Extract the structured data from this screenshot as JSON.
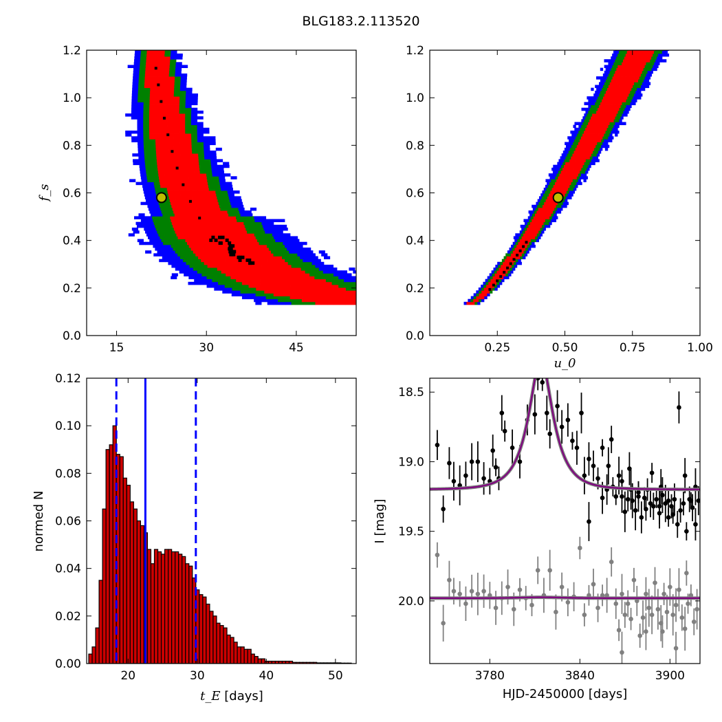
{
  "figure_title": "BLG183.2.113520",
  "chart_data": [
    {
      "id": "fs_vs_tE",
      "type": "heatmap",
      "xlabel": "",
      "ylabel": "f_s",
      "xlim": [
        10,
        55
      ],
      "ylim": [
        0.0,
        1.2
      ],
      "xticks": [
        "15",
        "30",
        "45"
      ],
      "xtick_values": [
        15,
        30,
        45
      ],
      "yticks": [
        "0.0",
        "0.2",
        "0.4",
        "0.6",
        "0.8",
        "1.0",
        "1.2"
      ],
      "ytick_values": [
        0.0,
        0.2,
        0.4,
        0.6,
        0.8,
        1.0,
        1.2
      ],
      "band": {
        "a": 0.0,
        "b": 3.9,
        "c": 1.94,
        "power": 1.9,
        "x_at_top": 17.5,
        "y_min": 0.13
      },
      "best_fit": {
        "x": 22.5,
        "y": 0.58
      },
      "colors": {
        "outer": "#0000ff",
        "middle": "#008000",
        "inner": "#ff0000",
        "peak": "#000000",
        "marker": "#bfbf00"
      }
    },
    {
      "id": "fs_vs_u0",
      "type": "heatmap",
      "xlabel": "u_0",
      "ylabel": "",
      "xlim": [
        0.0,
        1.0
      ],
      "ylim": [
        0.0,
        1.2
      ],
      "xticks": [
        "0.25",
        "0.50",
        "0.75",
        "1.00"
      ],
      "xtick_values": [
        0.25,
        0.5,
        0.75,
        1.0
      ],
      "yticks": [
        "0.0",
        "0.2",
        "0.4",
        "0.6",
        "0.8",
        "1.0",
        "1.2"
      ],
      "ytick_values": [
        0.0,
        0.2,
        0.4,
        0.6,
        0.8,
        1.0,
        1.2
      ],
      "band": {
        "x_low": 0.15,
        "x_high": 0.8,
        "y_low": 0.13,
        "y_high": 1.2
      },
      "best_fit": {
        "x": 0.475,
        "y": 0.58
      },
      "colors": {
        "outer": "#0000ff",
        "middle": "#008000",
        "inner": "#ff0000",
        "peak": "#000000",
        "marker": "#bfbf00"
      }
    },
    {
      "id": "tE_histogram",
      "type": "bar",
      "xlabel": "[days]",
      "xlabel_symbol": "t_E",
      "ylabel": "normed N",
      "xlim": [
        14,
        53
      ],
      "ylim": [
        0.0,
        0.12
      ],
      "xticks": [
        "20",
        "30",
        "40",
        "50"
      ],
      "xtick_values": [
        20,
        30,
        40,
        50
      ],
      "yticks": [
        "0.00",
        "0.02",
        "0.04",
        "0.06",
        "0.08",
        "0.10",
        "0.12"
      ],
      "ytick_values": [
        0.0,
        0.02,
        0.04,
        0.06,
        0.08,
        0.1,
        0.12
      ],
      "bin_start": 14.3,
      "bin_width": 0.5,
      "values": [
        0.004,
        0.007,
        0.015,
        0.035,
        0.065,
        0.09,
        0.092,
        0.1,
        0.088,
        0.087,
        0.078,
        0.075,
        0.068,
        0.065,
        0.06,
        0.058,
        0.055,
        0.048,
        0.042,
        0.048,
        0.047,
        0.046,
        0.048,
        0.048,
        0.047,
        0.047,
        0.046,
        0.045,
        0.042,
        0.041,
        0.036,
        0.031,
        0.029,
        0.028,
        0.025,
        0.022,
        0.02,
        0.017,
        0.016,
        0.015,
        0.012,
        0.011,
        0.009,
        0.007,
        0.007,
        0.006,
        0.006,
        0.004,
        0.003,
        0.002,
        0.002,
        0.001,
        0.001,
        0.001,
        0.001,
        0.001,
        0.001,
        0.001,
        0.001,
        0.0005,
        0.0005,
        0.0005,
        0.0005,
        0.0005,
        0.0005,
        0.0005,
        0.0003,
        0.0003,
        0.0003,
        0.0003,
        0.0003,
        0.0003,
        0.0003,
        0.0002,
        0.0002,
        0.0002
      ],
      "median": 22.5,
      "lower": 18.3,
      "upper": 29.8,
      "colors": {
        "bar": "#cc0000",
        "edge": "#000000",
        "line": "#0000ff"
      }
    },
    {
      "id": "light_curve",
      "type": "scatter",
      "xlabel": "HJD-2450000 [days]",
      "ylabel": "I [mag]",
      "xlim": [
        3740,
        3920
      ],
      "ylim": [
        20.45,
        18.4
      ],
      "xticks": [
        "3780",
        "3840",
        "3900"
      ],
      "xtick_values": [
        3780,
        3840,
        3900
      ],
      "yticks": [
        "18.5",
        "19.0",
        "19.5",
        "20.0"
      ],
      "ytick_values": [
        18.5,
        19.0,
        19.5,
        20.0
      ],
      "model": {
        "t0": 3814,
        "tE": 22.5,
        "u0": 0.475,
        "fs": 0.58,
        "base_mag": 19.2,
        "resid_level": 19.98
      },
      "points": [
        [
          3788,
          18.65
        ],
        [
          3790,
          18.78
        ],
        [
          3795,
          18.9
        ],
        [
          3800,
          19.0
        ],
        [
          3805,
          18.7
        ],
        [
          3810,
          18.66
        ],
        [
          3812,
          18.4
        ],
        [
          3815,
          18.43
        ],
        [
          3818,
          18.65
        ],
        [
          3820,
          18.8
        ],
        [
          3825,
          18.6
        ],
        [
          3828,
          18.75
        ],
        [
          3832,
          18.7
        ],
        [
          3835,
          18.85
        ],
        [
          3838,
          18.9
        ],
        [
          3841,
          18.65
        ],
        [
          3843,
          19.1
        ],
        [
          3846,
          18.98
        ],
        [
          3849,
          19.03
        ],
        [
          3852,
          19.12
        ],
        [
          3855,
          19.26
        ],
        [
          3858,
          19.2
        ],
        [
          3861,
          18.84
        ],
        [
          3864,
          19.25
        ],
        [
          3866,
          19.1
        ],
        [
          3868,
          19.25
        ],
        [
          3870,
          19.36
        ],
        [
          3872,
          19.27
        ],
        [
          3875,
          19.28
        ],
        [
          3877,
          19.35
        ],
        [
          3879,
          19.25
        ],
        [
          3881,
          19.4
        ],
        [
          3883,
          19.26
        ],
        [
          3885,
          19.2
        ],
        [
          3887,
          19.3
        ],
        [
          3889,
          19.32
        ],
        [
          3891,
          19.27
        ],
        [
          3893,
          19.37
        ],
        [
          3895,
          19.24
        ],
        [
          3897,
          19.3
        ],
        [
          3899,
          19.4
        ],
        [
          3901,
          19.32
        ],
        [
          3903,
          19.27
        ],
        [
          3905,
          19.45
        ],
        [
          3907,
          19.35
        ],
        [
          3909,
          19.3
        ],
        [
          3911,
          19.5
        ],
        [
          3913,
          19.27
        ],
        [
          3915,
          19.33
        ],
        [
          3917,
          19.45
        ],
        [
          3919,
          19.28
        ],
        [
          3745,
          18.88
        ],
        [
          3749,
          19.34
        ],
        [
          3753,
          19.01
        ],
        [
          3756,
          19.14
        ],
        [
          3760,
          19.17
        ],
        [
          3764,
          19.1
        ],
        [
          3768,
          19.0
        ],
        [
          3772,
          19.0
        ],
        [
          3776,
          19.12
        ],
        [
          3780,
          19.14
        ],
        [
          3782,
          18.92
        ],
        [
          3784,
          19.04
        ],
        [
          3786,
          19.12
        ],
        [
          3855,
          18.9
        ],
        [
          3859,
          19.03
        ],
        [
          3862,
          19.18
        ],
        [
          3868,
          19.14
        ],
        [
          3873,
          19.05
        ],
        [
          3879,
          19.22
        ],
        [
          3884,
          19.34
        ],
        [
          3888,
          19.08
        ],
        [
          3894,
          19.18
        ],
        [
          3899,
          19.28
        ],
        [
          3906,
          18.61
        ],
        [
          3910,
          19.1
        ],
        [
          3914,
          19.28
        ],
        [
          3917,
          19.18
        ],
        [
          3846,
          19.43
        ],
        [
          3893,
          19.32
        ],
        [
          3874,
          19.2
        ],
        [
          3902,
          19.38
        ]
      ],
      "resid_points": [
        [
          3745,
          19.67
        ],
        [
          3749,
          20.16
        ],
        [
          3753,
          19.85
        ],
        [
          3756,
          19.93
        ],
        [
          3760,
          19.95
        ],
        [
          3764,
          20.02
        ],
        [
          3768,
          19.93
        ],
        [
          3772,
          19.95
        ],
        [
          3776,
          19.93
        ],
        [
          3780,
          19.96
        ],
        [
          3784,
          20.05
        ],
        [
          3788,
          19.98
        ],
        [
          3792,
          19.9
        ],
        [
          3796,
          20.06
        ],
        [
          3800,
          19.92
        ],
        [
          3804,
          19.98
        ],
        [
          3808,
          20.03
        ],
        [
          3812,
          19.78
        ],
        [
          3816,
          19.96
        ],
        [
          3820,
          19.78
        ],
        [
          3824,
          20.08
        ],
        [
          3828,
          19.9
        ],
        [
          3832,
          20.01
        ],
        [
          3836,
          19.97
        ],
        [
          3840,
          19.62
        ],
        [
          3843,
          20.1
        ],
        [
          3846,
          19.96
        ],
        [
          3849,
          19.88
        ],
        [
          3852,
          20.05
        ],
        [
          3855,
          19.96
        ],
        [
          3858,
          19.96
        ],
        [
          3861,
          19.72
        ],
        [
          3864,
          20.02
        ],
        [
          3866,
          20.21
        ],
        [
          3868,
          19.95
        ],
        [
          3870,
          20.1
        ],
        [
          3872,
          20.02
        ],
        [
          3874,
          20.13
        ],
        [
          3876,
          19.85
        ],
        [
          3878,
          20.0
        ],
        [
          3880,
          20.25
        ],
        [
          3882,
          20.12
        ],
        [
          3884,
          19.95
        ],
        [
          3886,
          20.05
        ],
        [
          3888,
          20.1
        ],
        [
          3890,
          19.87
        ],
        [
          3892,
          20.06
        ],
        [
          3894,
          20.16
        ],
        [
          3896,
          19.95
        ],
        [
          3898,
          20.08
        ],
        [
          3900,
          19.9
        ],
        [
          3902,
          20.1
        ],
        [
          3904,
          20.03
        ],
        [
          3906,
          19.92
        ],
        [
          3908,
          20.12
        ],
        [
          3910,
          20.2
        ],
        [
          3912,
          20.02
        ],
        [
          3914,
          19.96
        ],
        [
          3916,
          20.15
        ],
        [
          3918,
          20.06
        ],
        [
          3868,
          20.37
        ],
        [
          3884,
          20.22
        ],
        [
          3904,
          20.34
        ],
        [
          3911,
          19.8
        ],
        [
          3895,
          20.22
        ]
      ],
      "colors": {
        "data": "#000000",
        "resid": "#808080",
        "model": "#800080",
        "model_under": "#808080"
      }
    }
  ]
}
